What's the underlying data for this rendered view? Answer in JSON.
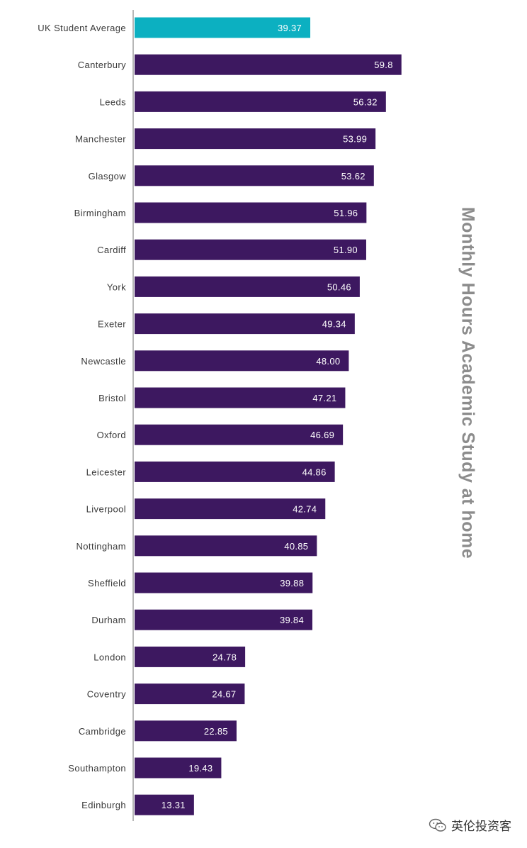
{
  "chart_data": {
    "type": "bar",
    "orientation": "horizontal",
    "title": "",
    "ylabel": "Monthly Hours Academic Study at home",
    "xlim": [
      0,
      70
    ],
    "grid": false,
    "categories": [
      "UK Student Average",
      "Canterbury",
      "Leeds",
      "Manchester",
      "Glasgow",
      "Birmingham",
      "Cardiff",
      "York",
      "Exeter",
      "Newcastle",
      "Bristol",
      "Oxford",
      "Leicester",
      "Liverpool",
      "Nottingham",
      "Sheffield",
      "Durham",
      "London",
      "Coventry",
      "Cambridge",
      "Southampton",
      "Edinburgh"
    ],
    "values": [
      39.37,
      59.8,
      56.32,
      53.99,
      53.62,
      51.96,
      51.9,
      50.46,
      49.34,
      48.0,
      47.21,
      46.69,
      44.86,
      42.74,
      40.85,
      39.88,
      39.84,
      24.78,
      24.67,
      22.85,
      19.43,
      13.31
    ],
    "value_labels": [
      "39.37",
      "59.8",
      "56.32",
      "53.99",
      "53.62",
      "51.96",
      "51.90",
      "50.46",
      "49.34",
      "48.00",
      "47.21",
      "46.69",
      "44.86",
      "42.74",
      "40.85",
      "39.88",
      "39.84",
      "24.78",
      "24.67",
      "22.85",
      "19.43",
      "13.31"
    ],
    "highlight_index": 0,
    "colors": {
      "highlight": "#0cb0c1",
      "bar": "#3d1860",
      "axis": "#b7b7b7"
    }
  },
  "watermark": {
    "text": "英伦投资客",
    "icon": "wechat-icon"
  }
}
